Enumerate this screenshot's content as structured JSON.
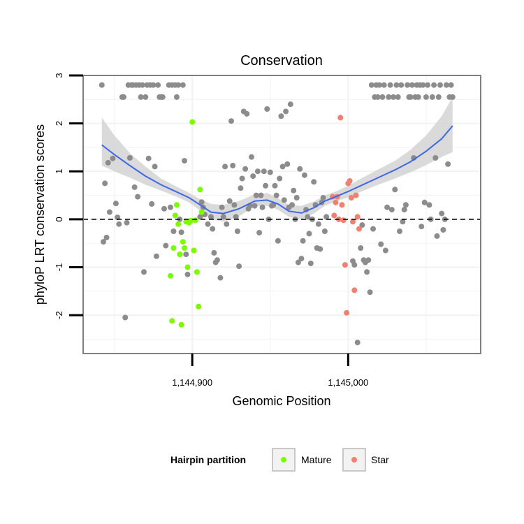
{
  "chart_data": {
    "type": "scatter",
    "title": "Conservation",
    "xlabel": "Genomic Position",
    "ylabel": "phyloP LRT conservation scores",
    "xlim": [
      1144830,
      1145085
    ],
    "ylim": [
      -2.8,
      3.0
    ],
    "x_ticks": [
      1144900,
      1145000
    ],
    "x_tick_labels": [
      "1,144,900",
      "1,145,000"
    ],
    "y_ticks": [
      -2,
      -1,
      0,
      1,
      2,
      3
    ],
    "y_tick_labels": [
      "-2",
      "-1",
      "0",
      "1",
      "2",
      "3"
    ],
    "grid": true,
    "reference_line": {
      "y": 0,
      "style": "dashed"
    },
    "legend": {
      "title": "Hairpin partition",
      "placement": "bottom",
      "entries": [
        {
          "label": "Mature",
          "color": "#7cfc00"
        },
        {
          "label": "Star",
          "color": "#f08070"
        }
      ]
    },
    "colors": {
      "other": "#8c8c8c",
      "mature": "#7cfc00",
      "star": "#f08070",
      "smooth": "#3f67e6",
      "band": "#d3d3d3"
    },
    "series": [
      {
        "group": "other",
        "points": [
          [
            1144842,
            2.8
          ],
          [
            1144843,
            -0.47
          ],
          [
            1144844,
            0.75
          ],
          [
            1144845,
            -0.38
          ],
          [
            1144846,
            1.18
          ],
          [
            1144847,
            0.15
          ],
          [
            1144849,
            1.27
          ],
          [
            1144851,
            0.33
          ],
          [
            1144852,
            0.04
          ],
          [
            1144853,
            -0.1
          ],
          [
            1144855,
            2.55
          ],
          [
            1144856,
            2.55
          ],
          [
            1144857,
            -2.05
          ],
          [
            1144858,
            -0.07
          ],
          [
            1144859,
            2.8
          ],
          [
            1144860,
            1.28
          ],
          [
            1144861,
            2.8
          ],
          [
            1144862,
            2.8
          ],
          [
            1144863,
            0.67
          ],
          [
            1144864,
            2.8
          ],
          [
            1144865,
            0.47
          ],
          [
            1144866,
            2.8
          ],
          [
            1144867,
            2.55
          ],
          [
            1144868,
            2.8
          ],
          [
            1144869,
            -1.1
          ],
          [
            1144870,
            2.55
          ],
          [
            1144871,
            2.8
          ],
          [
            1144872,
            1.27
          ],
          [
            1144873,
            2.8
          ],
          [
            1144874,
            0.32
          ],
          [
            1144875,
            2.8
          ],
          [
            1144876,
            1.1
          ],
          [
            1144877,
            -0.77
          ],
          [
            1144878,
            2.8
          ],
          [
            1144879,
            2.55
          ],
          [
            1144880,
            2.55
          ],
          [
            1144881,
            2.55
          ],
          [
            1144882,
            0.22
          ],
          [
            1144883,
            -0.55
          ],
          [
            1144885,
            2.8
          ],
          [
            1144886,
            0.25
          ],
          [
            1144887,
            2.8
          ],
          [
            1144888,
            -0.25
          ],
          [
            1144889,
            2.8
          ],
          [
            1144890,
            2.55
          ],
          [
            1144891,
            2.8
          ],
          [
            1144892,
            0.0
          ],
          [
            1144893,
            -0.27
          ],
          [
            1144894,
            2.8
          ],
          [
            1144895,
            1.22
          ],
          [
            1144896,
            -0.73
          ],
          [
            1144897,
            -1.15
          ],
          [
            1144905,
            0.05
          ],
          [
            1144906,
            0.36
          ],
          [
            1144907,
            0.25
          ],
          [
            1144908,
            0.1
          ],
          [
            1144910,
            -0.1
          ],
          [
            1144912,
            0.05
          ],
          [
            1144913,
            -0.2
          ],
          [
            1144914,
            -0.7
          ],
          [
            1144915,
            -0.9
          ],
          [
            1144916,
            -0.85
          ],
          [
            1144918,
            -1.22
          ],
          [
            1144919,
            0.25
          ],
          [
            1144920,
            0.05
          ],
          [
            1144921,
            1.1
          ],
          [
            1144922,
            -0.1
          ],
          [
            1144924,
            0.38
          ],
          [
            1144925,
            2.05
          ],
          [
            1144926,
            1.12
          ],
          [
            1144927,
            0.3
          ],
          [
            1144928,
            0.05
          ],
          [
            1144929,
            -0.25
          ],
          [
            1144930,
            -0.98
          ],
          [
            1144931,
            0.65
          ],
          [
            1144932,
            0.85
          ],
          [
            1144933,
            2.25
          ],
          [
            1144934,
            1.05
          ],
          [
            1144935,
            2.2
          ],
          [
            1144936,
            0.22
          ],
          [
            1144937,
            0.28
          ],
          [
            1144938,
            1.3
          ],
          [
            1144939,
            0.9
          ],
          [
            1144940,
            0.28
          ],
          [
            1144941,
            0.5
          ],
          [
            1144942,
            1.0
          ],
          [
            1144943,
            -0.28
          ],
          [
            1144944,
            0.5
          ],
          [
            1144945,
            0.25
          ],
          [
            1144946,
            1.0
          ],
          [
            1144947,
            0.7
          ],
          [
            1144948,
            2.3
          ],
          [
            1144949,
            0.0
          ],
          [
            1144950,
            0.98
          ],
          [
            1144951,
            0.28
          ],
          [
            1144952,
            0.3
          ],
          [
            1144953,
            0.7
          ],
          [
            1144954,
            0.5
          ],
          [
            1144955,
            -0.45
          ],
          [
            1144956,
            0.85
          ],
          [
            1144957,
            2.15
          ],
          [
            1144958,
            1.1
          ],
          [
            1144959,
            0.4
          ],
          [
            1144960,
            2.25
          ],
          [
            1144961,
            1.15
          ],
          [
            1144962,
            0.25
          ],
          [
            1144963,
            2.4
          ],
          [
            1144964,
            0.3
          ],
          [
            1144965,
            0.6
          ],
          [
            1144966,
            0.0
          ],
          [
            1144967,
            0.45
          ],
          [
            1144968,
            -0.9
          ],
          [
            1144969,
            1.05
          ],
          [
            1144970,
            -0.82
          ],
          [
            1144971,
            -0.45
          ],
          [
            1144972,
            0.92
          ],
          [
            1144973,
            0.2
          ],
          [
            1144974,
            0.05
          ],
          [
            1144975,
            -0.3
          ],
          [
            1144976,
            -0.92
          ],
          [
            1144977,
            0.0
          ],
          [
            1144978,
            0.78
          ],
          [
            1144979,
            0.3
          ],
          [
            1144980,
            -0.6
          ],
          [
            1144981,
            -0.1
          ],
          [
            1144982,
            -0.62
          ],
          [
            1144983,
            0.35
          ],
          [
            1144984,
            0.45
          ],
          [
            1144985,
            -0.25
          ],
          [
            1144986,
            0.05
          ],
          [
            1145008,
            -0.6
          ],
          [
            1145009,
            -0.12
          ],
          [
            1145010,
            -0.85
          ],
          [
            1145011,
            -0.9
          ],
          [
            1145012,
            -1.1
          ],
          [
            1145013,
            -0.85
          ],
          [
            1145014,
            -1.52
          ],
          [
            1145015,
            2.8
          ],
          [
            1145016,
            -0.2
          ],
          [
            1145017,
            2.55
          ],
          [
            1145018,
            2.8
          ],
          [
            1145019,
            2.55
          ],
          [
            1145020,
            2.8
          ],
          [
            1145021,
            -0.52
          ],
          [
            1145022,
            2.55
          ],
          [
            1145023,
            2.8
          ],
          [
            1145024,
            -0.65
          ],
          [
            1145025,
            0.25
          ],
          [
            1145026,
            2.55
          ],
          [
            1145027,
            2.8
          ],
          [
            1145028,
            0.2
          ],
          [
            1145029,
            2.55
          ],
          [
            1145030,
            0.62
          ],
          [
            1145031,
            2.8
          ],
          [
            1145032,
            2.55
          ],
          [
            1145033,
            -0.25
          ],
          [
            1145034,
            2.8
          ],
          [
            1145035,
            -0.05
          ],
          [
            1145036,
            0.2
          ],
          [
            1145037,
            0.3
          ],
          [
            1145038,
            2.8
          ],
          [
            1145039,
            2.55
          ],
          [
            1145040,
            2.55
          ],
          [
            1145041,
            2.8
          ],
          [
            1145042,
            1.28
          ],
          [
            1145043,
            2.55
          ],
          [
            1145044,
            2.8
          ],
          [
            1145045,
            2.55
          ],
          [
            1145046,
            2.8
          ],
          [
            1145047,
            -0.15
          ],
          [
            1145048,
            2.8
          ],
          [
            1145049,
            0.35
          ],
          [
            1145050,
            2.55
          ],
          [
            1145051,
            2.8
          ],
          [
            1145052,
            0.3
          ],
          [
            1145053,
            0.0
          ],
          [
            1145054,
            2.55
          ],
          [
            1145055,
            2.8
          ],
          [
            1145056,
            1.28
          ],
          [
            1145057,
            -0.35
          ],
          [
            1145058,
            2.55
          ],
          [
            1145059,
            2.8
          ],
          [
            1145060,
            0.12
          ],
          [
            1145061,
            -0.22
          ],
          [
            1145062,
            0.0
          ],
          [
            1145063,
            2.8
          ],
          [
            1145064,
            1.15
          ],
          [
            1145065,
            2.55
          ],
          [
            1145066,
            2.8
          ],
          [
            1145067,
            2.55
          ],
          [
            1145003,
            -0.87
          ],
          [
            1145004,
            -0.95
          ],
          [
            1145006,
            -2.57
          ]
        ]
      },
      {
        "name": "Mature",
        "group": "mature",
        "points": [
          [
            1144886,
            -1.18
          ],
          [
            1144887,
            -2.12
          ],
          [
            1144888,
            -0.6
          ],
          [
            1144889,
            0.08
          ],
          [
            1144890,
            0.3
          ],
          [
            1144891,
            -0.1
          ],
          [
            1144892,
            -0.73
          ],
          [
            1144893,
            -2.2
          ],
          [
            1144894,
            -0.47
          ],
          [
            1144895,
            -0.6
          ],
          [
            1144896,
            -0.05
          ],
          [
            1144897,
            -1.0
          ],
          [
            1144898,
            -0.07
          ],
          [
            1144899,
            -0.03
          ],
          [
            1144900,
            2.03
          ],
          [
            1144901,
            -0.65
          ],
          [
            1144902,
            -0.02
          ],
          [
            1144903,
            -1.1
          ],
          [
            1144904,
            -1.82
          ],
          [
            1144905,
            0.62
          ],
          [
            1144906,
            0.15
          ]
        ]
      },
      {
        "name": "Star",
        "group": "star",
        "points": [
          [
            1144990,
            0.47
          ],
          [
            1144991,
            0.08
          ],
          [
            1144992,
            0.35
          ],
          [
            1144993,
            0.47
          ],
          [
            1144994,
            0.0
          ],
          [
            1144995,
            2.12
          ],
          [
            1144996,
            0.3
          ],
          [
            1144997,
            -0.02
          ],
          [
            1144998,
            -0.95
          ],
          [
            1144999,
            -1.95
          ],
          [
            1145000,
            0.75
          ],
          [
            1145001,
            0.8
          ],
          [
            1145002,
            0.45
          ],
          [
            1145003,
            -0.05
          ],
          [
            1145004,
            -1.48
          ],
          [
            1145005,
            0.5
          ],
          [
            1145006,
            0.05
          ],
          [
            1145007,
            -0.2
          ]
        ]
      }
    ],
    "smooth": {
      "x": [
        1144842,
        1144850,
        1144860,
        1144870,
        1144880,
        1144890,
        1144898,
        1144905,
        1144912,
        1144920,
        1144930,
        1144940,
        1144948,
        1144955,
        1144962,
        1144970,
        1144978,
        1144985,
        1144992,
        1145000,
        1145010,
        1145020,
        1145030,
        1145040,
        1145050,
        1145060,
        1145067
      ],
      "y": [
        1.55,
        1.35,
        1.12,
        0.9,
        0.72,
        0.57,
        0.45,
        0.3,
        0.15,
        0.12,
        0.22,
        0.38,
        0.4,
        0.32,
        0.17,
        0.13,
        0.24,
        0.38,
        0.47,
        0.58,
        0.73,
        0.88,
        1.03,
        1.2,
        1.42,
        1.68,
        1.95
      ],
      "se_lower": [
        1.12,
        1.0,
        0.87,
        0.72,
        0.6,
        0.47,
        0.35,
        0.18,
        0.0,
        -0.05,
        0.06,
        0.27,
        0.28,
        0.2,
        0.05,
        0.0,
        0.12,
        0.28,
        0.37,
        0.46,
        0.6,
        0.73,
        0.85,
        0.98,
        1.13,
        1.3,
        1.4
      ],
      "se_upper": [
        2.12,
        1.75,
        1.38,
        1.1,
        0.85,
        0.68,
        0.55,
        0.42,
        0.32,
        0.3,
        0.38,
        0.52,
        0.55,
        0.44,
        0.3,
        0.28,
        0.37,
        0.5,
        0.58,
        0.7,
        0.88,
        1.05,
        1.22,
        1.45,
        1.75,
        2.15,
        2.55
      ]
    }
  }
}
